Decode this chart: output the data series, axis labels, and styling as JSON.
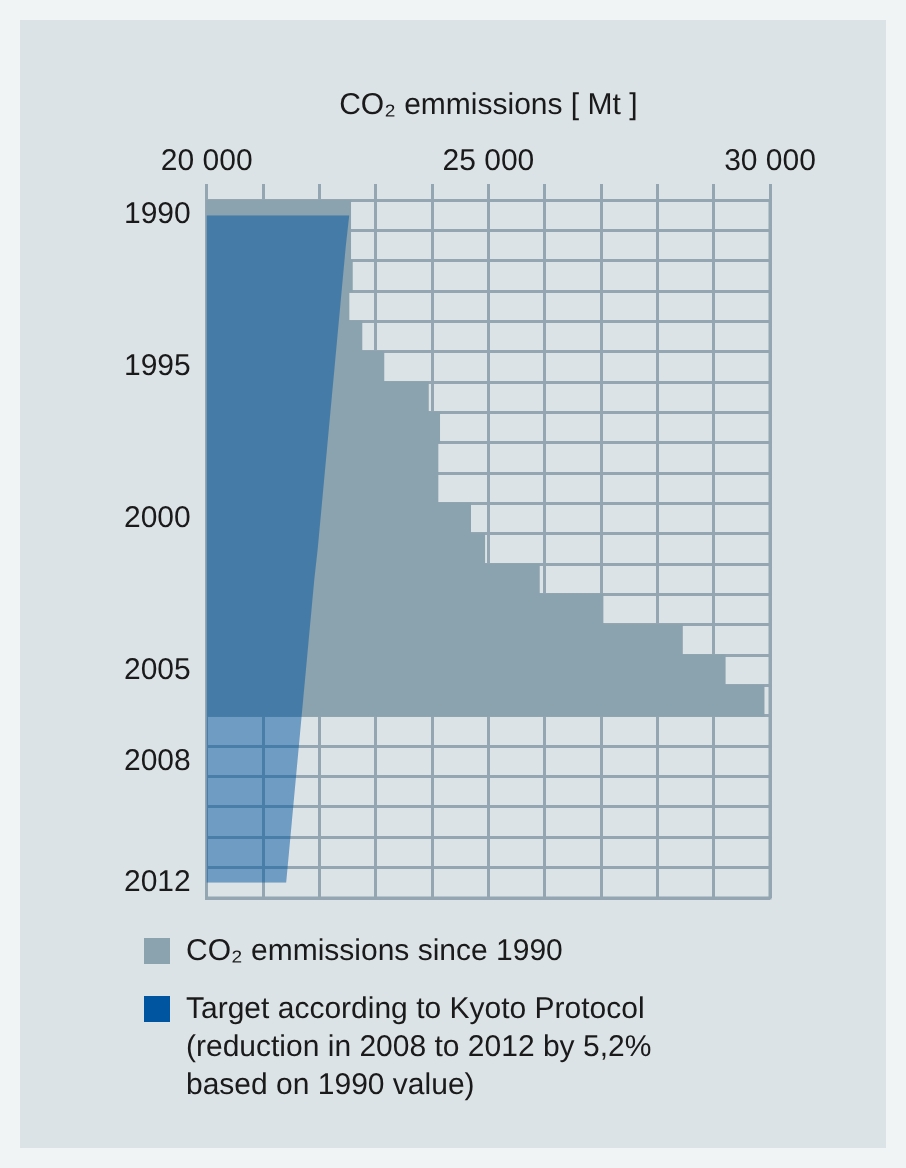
{
  "chart_data": {
    "type": "bar",
    "orientation": "horizontal",
    "xlabel": "CO₂ emmissions [ Mt ]",
    "categories": [
      "1990",
      null,
      null,
      null,
      null,
      "1995",
      null,
      null,
      null,
      null,
      "2000",
      null,
      null,
      null,
      null,
      "2005",
      null,
      null,
      "2008",
      null,
      null,
      null,
      "2012"
    ],
    "series": [
      {
        "name": "CO₂ emmissions since 1990",
        "color": "#8ba3ae",
        "values": [
          22550,
          22550,
          22580,
          22520,
          22750,
          23140,
          23930,
          24130,
          24100,
          24100,
          24680,
          24930,
          25900,
          27030,
          28440,
          29200,
          29890,
          null,
          null,
          null,
          null,
          null,
          null
        ]
      },
      {
        "type": "area",
        "name": "Target according to Kyoto Protocol (reduction in 2008 to 2012 by 5,2% based on 1990 value)",
        "color": "#0055a0",
        "values": [
          22530,
          22470,
          22420,
          22370,
          22320,
          22270,
          22220,
          22170,
          22120,
          22070,
          22020,
          21970,
          21910,
          21860,
          21810,
          21760,
          21710,
          21660,
          21610,
          21560,
          21510,
          21460,
          21410
        ]
      }
    ],
    "xlim": [
      20000,
      30000
    ],
    "xticks": [
      {
        "value": 20000,
        "label": "20 000"
      },
      {
        "value": 21000,
        "label": null
      },
      {
        "value": 22000,
        "label": null
      },
      {
        "value": 23000,
        "label": null
      },
      {
        "value": 24000,
        "label": null
      },
      {
        "value": 25000,
        "label": "25 000"
      },
      {
        "value": 26000,
        "label": null
      },
      {
        "value": 27000,
        "label": null
      },
      {
        "value": 28000,
        "label": null
      },
      {
        "value": 29000,
        "label": null
      },
      {
        "value": 30000,
        "label": "30 000"
      }
    ],
    "grid": true,
    "legend": "bottom"
  }
}
